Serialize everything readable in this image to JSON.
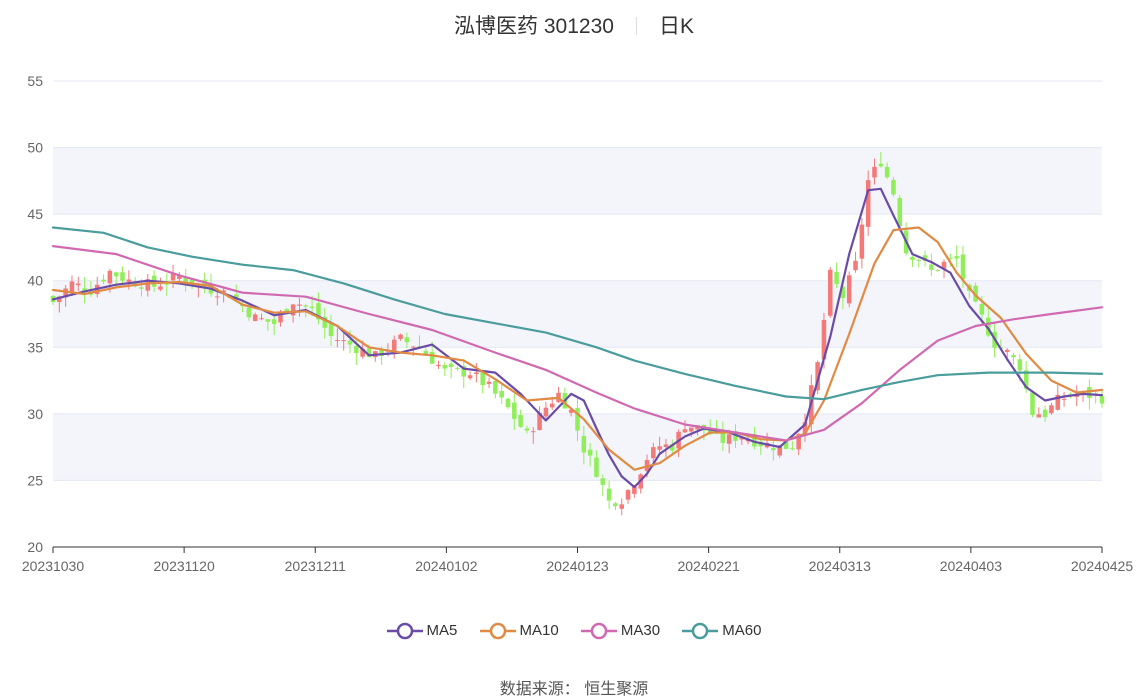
{
  "header": {
    "stock_name": "泓博医药 301230",
    "period": "日K"
  },
  "source": {
    "label": "数据来源：",
    "provider": "恒生聚源"
  },
  "chart_data": {
    "type": "candlestick",
    "ylim": [
      20,
      55
    ],
    "yticks": [
      20,
      25,
      30,
      35,
      40,
      45,
      50,
      55
    ],
    "xticks": [
      "20231030",
      "20231120",
      "20231211",
      "20240102",
      "20240123",
      "20240221",
      "20240313",
      "20240403",
      "20240425"
    ],
    "colors": {
      "up": "#f47a7a",
      "down": "#90ee5a",
      "band": "#f3f5fb",
      "grid": "#e3e7f2"
    },
    "legend_position": "bottom",
    "series": [
      {
        "name": "MA5",
        "color": "#6a4ca8"
      },
      {
        "name": "MA10",
        "color": "#e08a44"
      },
      {
        "name": "MA30",
        "color": "#d069b0"
      },
      {
        "name": "MA60",
        "color": "#4b9c9c"
      }
    ],
    "close_path": [
      [
        0,
        38.4
      ],
      [
        3,
        39.8
      ],
      [
        6,
        39.3
      ],
      [
        9,
        40.7
      ],
      [
        12,
        40.0
      ],
      [
        16,
        39.6
      ],
      [
        20,
        40.3
      ],
      [
        24,
        39.5
      ],
      [
        28,
        39.0
      ],
      [
        32,
        37.2
      ],
      [
        35,
        36.8
      ],
      [
        38,
        38.5
      ],
      [
        41,
        37.8
      ],
      [
        44,
        35.8
      ],
      [
        47,
        35.2
      ],
      [
        51,
        34.3
      ],
      [
        55,
        35.6
      ],
      [
        58,
        35.0
      ],
      [
        62,
        33.2
      ],
      [
        66,
        33.1
      ],
      [
        69,
        32.0
      ],
      [
        72,
        30.4
      ],
      [
        75,
        28.4
      ],
      [
        78,
        30.5
      ],
      [
        80,
        31.5
      ],
      [
        82,
        30.2
      ],
      [
        84,
        27.4
      ],
      [
        86,
        25.7
      ],
      [
        88,
        23.4
      ],
      [
        90,
        23.6
      ],
      [
        92,
        24.9
      ],
      [
        94,
        26.7
      ],
      [
        96,
        27.6
      ],
      [
        98,
        27.6
      ],
      [
        100,
        29.2
      ],
      [
        103,
        28.8
      ],
      [
        106,
        28.0
      ],
      [
        109,
        28.4
      ],
      [
        112,
        27.8
      ],
      [
        115,
        27.5
      ],
      [
        117,
        27.6
      ],
      [
        119,
        29.8
      ],
      [
        121,
        33.7
      ],
      [
        123,
        40.4
      ],
      [
        125,
        38.8
      ],
      [
        127,
        41.2
      ],
      [
        129,
        47.5
      ],
      [
        131,
        49.0
      ],
      [
        133,
        46.6
      ],
      [
        135,
        42.2
      ],
      [
        137,
        41.7
      ],
      [
        139,
        40.7
      ],
      [
        141,
        41.3
      ],
      [
        143,
        41.6
      ],
      [
        145,
        38.8
      ],
      [
        147,
        37.2
      ],
      [
        149,
        35.3
      ],
      [
        151,
        34.6
      ],
      [
        153,
        33.6
      ],
      [
        155,
        30.1
      ],
      [
        157,
        30.0
      ],
      [
        159,
        31.0
      ],
      [
        161,
        31.4
      ],
      [
        164,
        31.4
      ],
      [
        166,
        31.2
      ]
    ],
    "ma_paths": {
      "MA5": [
        [
          0,
          38.6
        ],
        [
          5,
          39.2
        ],
        [
          10,
          39.7
        ],
        [
          15,
          40.0
        ],
        [
          20,
          39.8
        ],
        [
          25,
          39.4
        ],
        [
          30,
          38.5
        ],
        [
          35,
          37.4
        ],
        [
          40,
          37.8
        ],
        [
          45,
          36.6
        ],
        [
          50,
          34.4
        ],
        [
          55,
          34.6
        ],
        [
          60,
          35.2
        ],
        [
          65,
          33.4
        ],
        [
          70,
          33.1
        ],
        [
          74,
          31.5
        ],
        [
          78,
          29.5
        ],
        [
          82,
          31.5
        ],
        [
          84,
          31.0
        ],
        [
          86,
          28.9
        ],
        [
          88,
          26.9
        ],
        [
          90,
          25.3
        ],
        [
          92,
          24.5
        ],
        [
          94,
          25.5
        ],
        [
          96,
          27.0
        ],
        [
          100,
          28.3
        ],
        [
          103,
          28.9
        ],
        [
          107,
          28.6
        ],
        [
          111,
          27.9
        ],
        [
          115,
          27.5
        ],
        [
          119,
          29.2
        ],
        [
          123,
          35.8
        ],
        [
          126,
          42.0
        ],
        [
          129,
          46.8
        ],
        [
          131,
          46.9
        ],
        [
          133,
          44.9
        ],
        [
          136,
          42.0
        ],
        [
          139,
          41.4
        ],
        [
          142,
          40.6
        ],
        [
          145,
          38.1
        ],
        [
          148,
          36.4
        ],
        [
          151,
          34.1
        ],
        [
          154,
          32.0
        ],
        [
          157,
          31.0
        ],
        [
          160,
          31.3
        ],
        [
          163,
          31.5
        ],
        [
          166,
          31.4
        ]
      ],
      "MA10": [
        [
          0,
          39.3
        ],
        [
          5,
          39.0
        ],
        [
          10,
          39.5
        ],
        [
          15,
          39.8
        ],
        [
          20,
          39.9
        ],
        [
          25,
          39.6
        ],
        [
          30,
          38.2
        ],
        [
          35,
          37.6
        ],
        [
          40,
          37.7
        ],
        [
          45,
          36.6
        ],
        [
          50,
          35.0
        ],
        [
          55,
          34.6
        ],
        [
          60,
          34.4
        ],
        [
          65,
          34.0
        ],
        [
          70,
          32.6
        ],
        [
          75,
          31.0
        ],
        [
          80,
          31.2
        ],
        [
          84,
          29.6
        ],
        [
          88,
          27.3
        ],
        [
          92,
          25.8
        ],
        [
          96,
          26.3
        ],
        [
          100,
          27.6
        ],
        [
          104,
          28.6
        ],
        [
          108,
          28.6
        ],
        [
          112,
          28.1
        ],
        [
          116,
          28.0
        ],
        [
          119,
          28.5
        ],
        [
          122,
          31.0
        ],
        [
          126,
          36.0
        ],
        [
          130,
          41.3
        ],
        [
          133,
          43.8
        ],
        [
          137,
          44.0
        ],
        [
          140,
          42.9
        ],
        [
          143,
          40.6
        ],
        [
          146,
          38.9
        ],
        [
          150,
          37.2
        ],
        [
          154,
          34.5
        ],
        [
          158,
          32.5
        ],
        [
          162,
          31.6
        ],
        [
          166,
          31.8
        ]
      ],
      "MA30": [
        [
          0,
          42.6
        ],
        [
          10,
          42.0
        ],
        [
          20,
          40.4
        ],
        [
          30,
          39.1
        ],
        [
          40,
          38.8
        ],
        [
          50,
          37.5
        ],
        [
          60,
          36.3
        ],
        [
          70,
          34.6
        ],
        [
          78,
          33.3
        ],
        [
          86,
          31.6
        ],
        [
          92,
          30.4
        ],
        [
          100,
          29.2
        ],
        [
          108,
          28.6
        ],
        [
          116,
          28.0
        ],
        [
          122,
          28.8
        ],
        [
          128,
          30.8
        ],
        [
          134,
          33.3
        ],
        [
          140,
          35.5
        ],
        [
          146,
          36.6
        ],
        [
          152,
          37.1
        ],
        [
          158,
          37.5
        ],
        [
          166,
          38.0
        ]
      ],
      "MA60": [
        [
          0,
          44.0
        ],
        [
          8,
          43.6
        ],
        [
          15,
          42.5
        ],
        [
          22,
          41.8
        ],
        [
          30,
          41.2
        ],
        [
          38,
          40.8
        ],
        [
          46,
          39.8
        ],
        [
          54,
          38.6
        ],
        [
          62,
          37.5
        ],
        [
          70,
          36.8
        ],
        [
          78,
          36.1
        ],
        [
          86,
          35.0
        ],
        [
          92,
          34.0
        ],
        [
          100,
          33.0
        ],
        [
          108,
          32.1
        ],
        [
          116,
          31.3
        ],
        [
          122,
          31.1
        ],
        [
          128,
          31.8
        ],
        [
          134,
          32.4
        ],
        [
          140,
          32.9
        ],
        [
          148,
          33.1
        ],
        [
          158,
          33.1
        ],
        [
          166,
          33.0
        ]
      ]
    }
  }
}
